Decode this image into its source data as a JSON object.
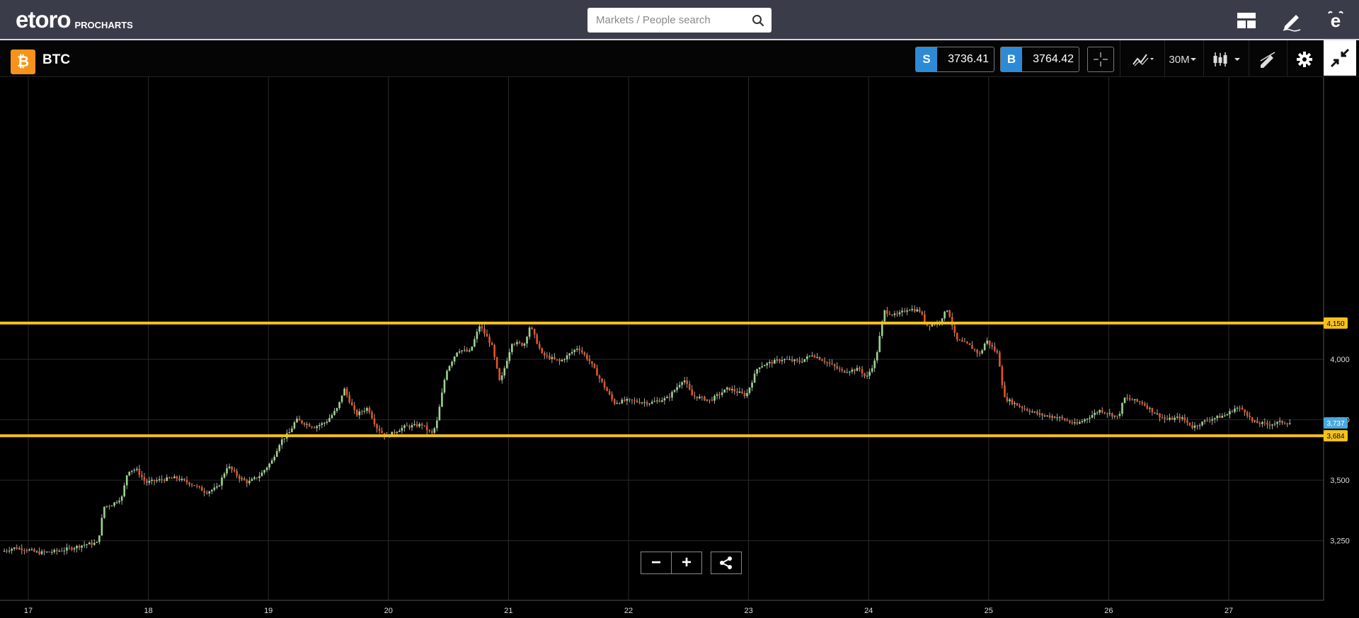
{
  "app": {
    "logo_text": "etoro",
    "logo_sub": "PROCHARTS"
  },
  "search": {
    "placeholder": "Markets / People search"
  },
  "instrument": {
    "symbol": "BTC",
    "icon": "bitcoin-icon",
    "sell_label": "S",
    "sell_price": "3736.41",
    "buy_label": "B",
    "buy_price": "3764.42",
    "timeframe": "30M"
  },
  "colors": {
    "accent_yellow": "#f5c21b",
    "up_candle": "#9bd48f",
    "down_candle": "#e8521f",
    "sell_blue": "#2d8ad6",
    "current_price_blue": "#4aa8e0"
  },
  "chart_data": {
    "type": "candlestick",
    "x_tick_labels": [
      "17",
      "18",
      "19",
      "20",
      "21",
      "22",
      "23",
      "24",
      "25",
      "26",
      "27"
    ],
    "y_tick_labels": [
      "3,250",
      "3,500",
      "3,750",
      "4,000"
    ],
    "y_ticks": [
      3250,
      3500,
      3750,
      4000
    ],
    "ylim": [
      3170,
      4410
    ],
    "horizontal_lines": [
      {
        "value": 4150,
        "label": "4,150"
      },
      {
        "value": 3684,
        "label": "3,684"
      }
    ],
    "current_price": {
      "value": 3737,
      "label": "3,737"
    },
    "price_path": [
      [
        16.8,
        3205
      ],
      [
        16.9,
        3220
      ],
      [
        17.0,
        3215
      ],
      [
        17.1,
        3200
      ],
      [
        17.2,
        3203
      ],
      [
        17.3,
        3210
      ],
      [
        17.4,
        3222
      ],
      [
        17.5,
        3235
      ],
      [
        17.6,
        3240
      ],
      [
        17.65,
        3390
      ],
      [
        17.72,
        3400
      ],
      [
        17.8,
        3430
      ],
      [
        17.85,
        3540
      ],
      [
        17.92,
        3545
      ],
      [
        18.0,
        3490
      ],
      [
        18.1,
        3500
      ],
      [
        18.25,
        3510
      ],
      [
        18.4,
        3480
      ],
      [
        18.5,
        3450
      ],
      [
        18.6,
        3470
      ],
      [
        18.68,
        3560
      ],
      [
        18.78,
        3510
      ],
      [
        18.85,
        3490
      ],
      [
        18.95,
        3520
      ],
      [
        19.05,
        3580
      ],
      [
        19.12,
        3660
      ],
      [
        19.2,
        3700
      ],
      [
        19.25,
        3750
      ],
      [
        19.4,
        3720
      ],
      [
        19.5,
        3740
      ],
      [
        19.6,
        3800
      ],
      [
        19.65,
        3880
      ],
      [
        19.75,
        3770
      ],
      [
        19.85,
        3800
      ],
      [
        19.92,
        3720
      ],
      [
        20.0,
        3680
      ],
      [
        20.15,
        3720
      ],
      [
        20.3,
        3730
      ],
      [
        20.38,
        3690
      ],
      [
        20.42,
        3730
      ],
      [
        20.5,
        3950
      ],
      [
        20.6,
        4040
      ],
      [
        20.7,
        4030
      ],
      [
        20.78,
        4140
      ],
      [
        20.88,
        4060
      ],
      [
        20.95,
        3900
      ],
      [
        21.05,
        4070
      ],
      [
        21.15,
        4060
      ],
      [
        21.2,
        4140
      ],
      [
        21.3,
        4020
      ],
      [
        21.45,
        3990
      ],
      [
        21.6,
        4050
      ],
      [
        21.7,
        3990
      ],
      [
        21.78,
        3920
      ],
      [
        21.9,
        3820
      ],
      [
        22.0,
        3830
      ],
      [
        22.2,
        3820
      ],
      [
        22.35,
        3840
      ],
      [
        22.48,
        3920
      ],
      [
        22.55,
        3850
      ],
      [
        22.7,
        3830
      ],
      [
        22.85,
        3880
      ],
      [
        23.0,
        3850
      ],
      [
        23.1,
        3970
      ],
      [
        23.3,
        4000
      ],
      [
        23.45,
        3990
      ],
      [
        23.55,
        4020
      ],
      [
        23.7,
        3980
      ],
      [
        23.8,
        3950
      ],
      [
        23.95,
        3960
      ],
      [
        24.0,
        3920
      ],
      [
        24.08,
        4000
      ],
      [
        24.15,
        4200
      ],
      [
        24.25,
        4180
      ],
      [
        24.35,
        4210
      ],
      [
        24.45,
        4200
      ],
      [
        24.5,
        4140
      ],
      [
        24.6,
        4150
      ],
      [
        24.68,
        4210
      ],
      [
        24.75,
        4080
      ],
      [
        24.85,
        4060
      ],
      [
        24.95,
        4020
      ],
      [
        25.0,
        4080
      ],
      [
        25.1,
        4020
      ],
      [
        25.15,
        3840
      ],
      [
        25.3,
        3800
      ],
      [
        25.45,
        3770
      ],
      [
        25.6,
        3760
      ],
      [
        25.75,
        3730
      ],
      [
        25.85,
        3760
      ],
      [
        25.95,
        3790
      ],
      [
        26.1,
        3760
      ],
      [
        26.15,
        3840
      ],
      [
        26.3,
        3820
      ],
      [
        26.4,
        3780
      ],
      [
        26.5,
        3750
      ],
      [
        26.62,
        3760
      ],
      [
        26.72,
        3720
      ],
      [
        26.85,
        3750
      ],
      [
        27.0,
        3770
      ],
      [
        27.08,
        3800
      ],
      [
        27.15,
        3790
      ],
      [
        27.22,
        3740
      ],
      [
        27.35,
        3730
      ],
      [
        27.45,
        3740
      ],
      [
        27.52,
        3737
      ]
    ]
  },
  "buttons": {
    "zoom_out": "−",
    "zoom_in": "+"
  }
}
